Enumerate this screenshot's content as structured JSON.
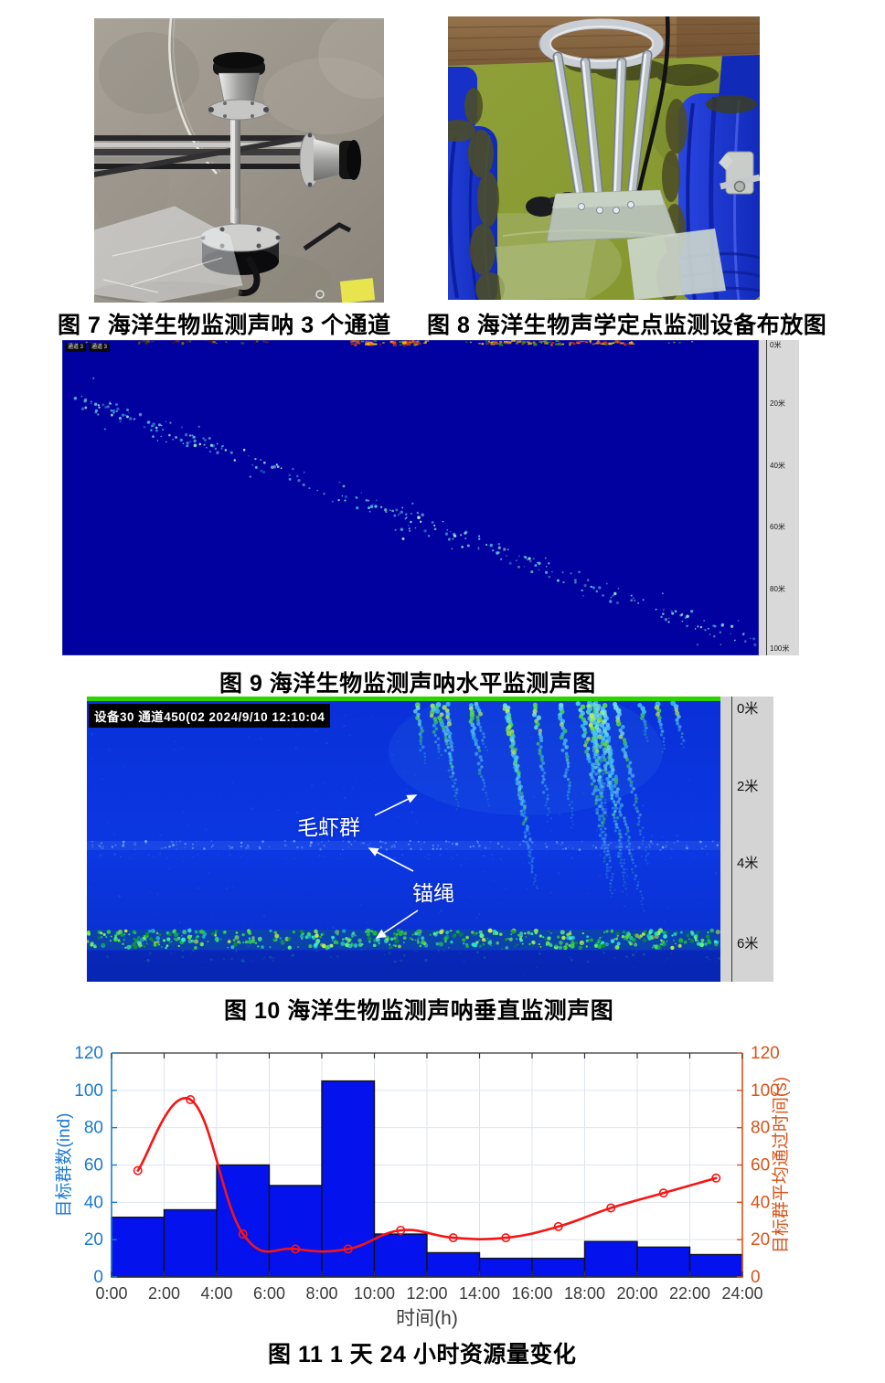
{
  "captions": {
    "fig7": "图 7 海洋生物监测声呐 3 个通道",
    "fig8": "图 8 海洋生物声学定点监测设备布放图",
    "fig9": "图 9 海洋生物监测声呐水平监测声图",
    "fig10": "图 10 海洋生物监测声呐垂直监测声图",
    "fig11": "图 11 1 天 24 小时资源量变化"
  },
  "fig9": {
    "tabs": [
      "通道 3",
      "通道 3"
    ],
    "depth_labels": [
      "0米",
      "20米",
      "40米",
      "60米",
      "80米",
      "100米"
    ]
  },
  "fig10": {
    "overlay": "设备30 通道450(02 2024/9/10 12:10:04",
    "depth_labels": [
      "0米",
      "2米",
      "4米",
      "6米"
    ],
    "annotation_shrimp": "毛虾群",
    "annotation_rope": "锚绳"
  },
  "chart_data": {
    "type": "bar+line",
    "title": "",
    "xlabel": "时间(h)",
    "ylabel_left": "目标群数(ind)",
    "ylabel_right": "目标群平均通过时间(s)",
    "x_ticks": [
      "0:00",
      "2:00",
      "4:00",
      "6:00",
      "8:00",
      "10:00",
      "12:00",
      "14:00",
      "16:00",
      "18:00",
      "20:00",
      "22:00",
      "24:00"
    ],
    "xlim": [
      0,
      24
    ],
    "ylim_left": [
      0,
      120
    ],
    "ylim_right": [
      0,
      120
    ],
    "yticks": [
      0,
      20,
      40,
      60,
      80,
      100,
      120
    ],
    "grid": true,
    "legend": "none",
    "axis_colors": {
      "left": "#1a7ad2",
      "right": "#d95319",
      "bottom": "#333333"
    },
    "series": [
      {
        "name": "目标群数",
        "type": "bar",
        "color": "#0413ee",
        "edge": "#10131f",
        "bin_width_h": 2,
        "bin_starts": [
          0,
          2,
          4,
          6,
          8,
          10,
          12,
          14,
          16,
          18,
          20,
          22
        ],
        "values": [
          32,
          36,
          60,
          49,
          105,
          23,
          13,
          10,
          10,
          19,
          16,
          12
        ]
      },
      {
        "name": "目标群平均通过时间",
        "type": "line",
        "color": "#f51515",
        "marker": "open-circle",
        "x": [
          1,
          3,
          5,
          7,
          9,
          11,
          13,
          15,
          17,
          19,
          21,
          23
        ],
        "values": [
          57,
          95,
          23,
          15,
          15,
          25,
          21,
          21,
          27,
          37,
          45,
          53
        ]
      }
    ]
  }
}
